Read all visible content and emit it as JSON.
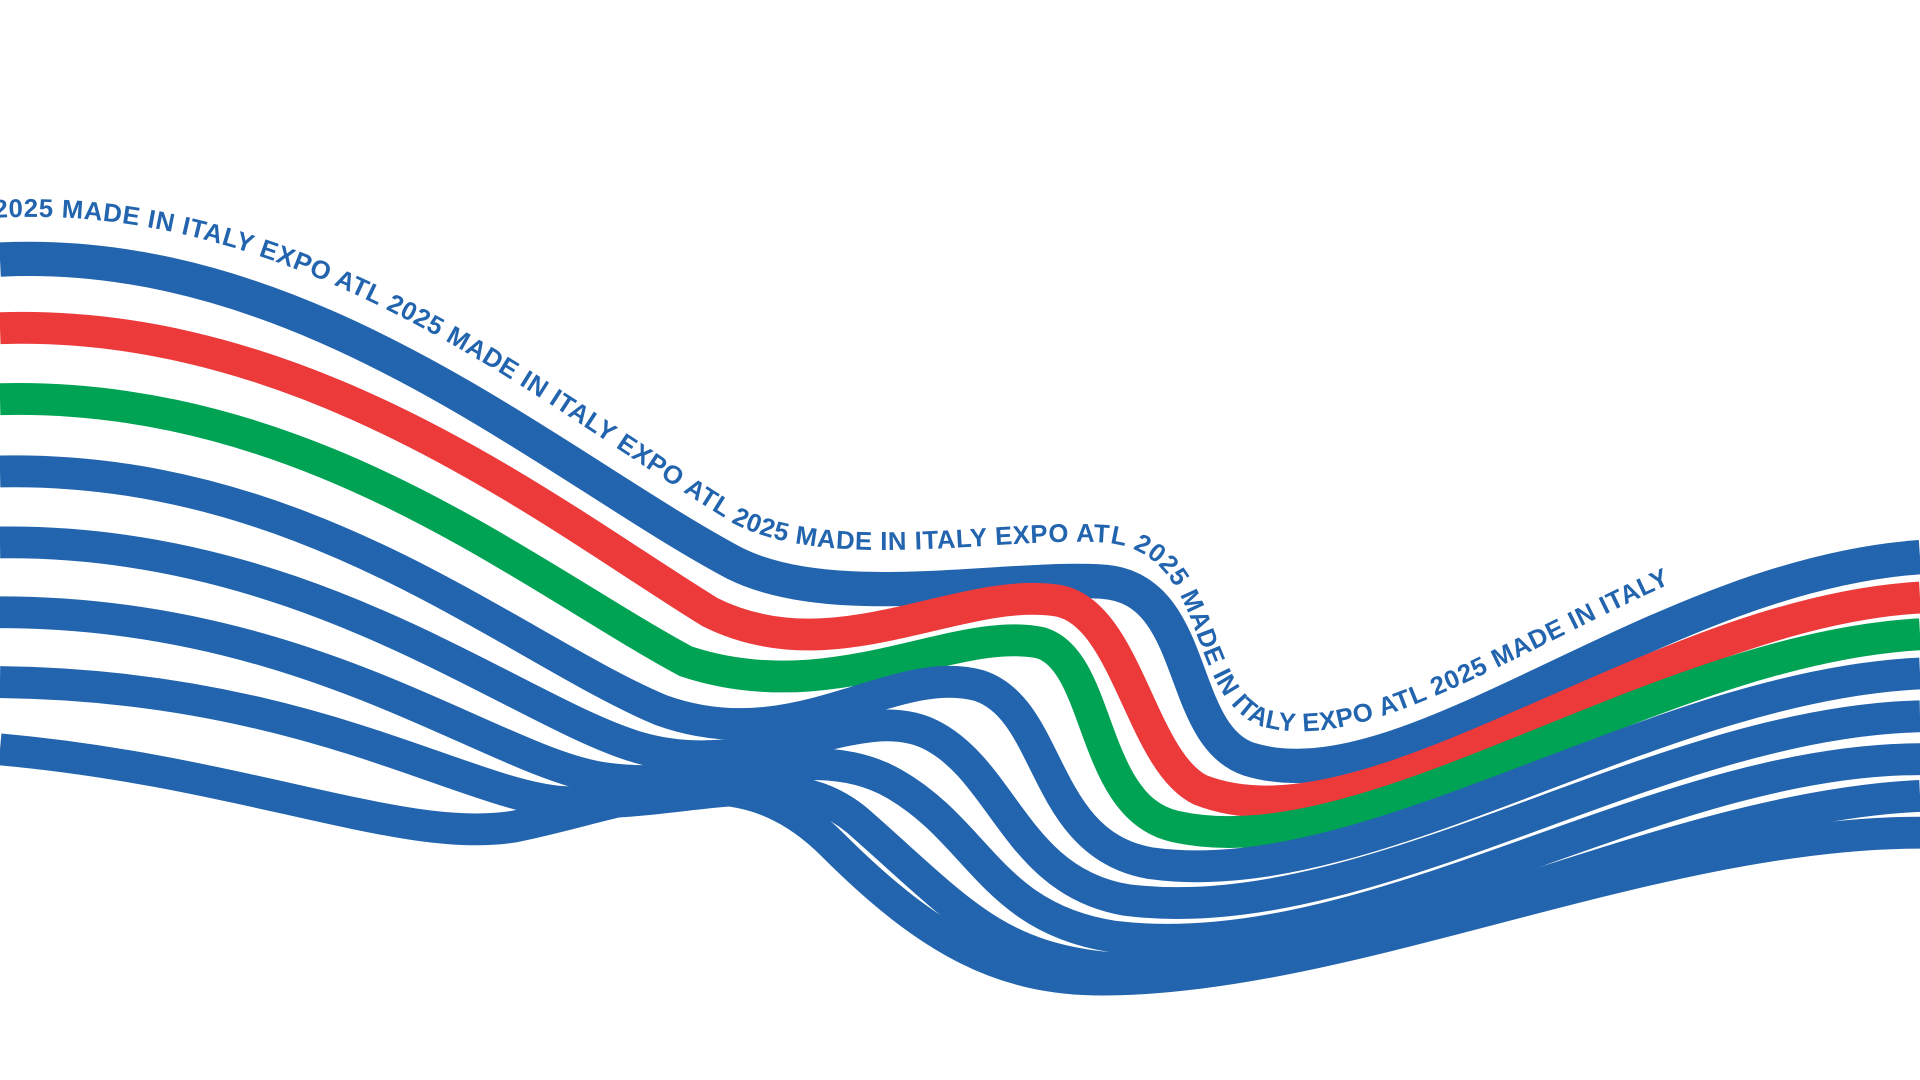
{
  "banner": {
    "text": "2025 MADE IN ITALY EXPO ATL 2025 MADE IN ITALY EXPO ATL 2025 MADE IN ITALY EXPO ATL 2025 MADE IN ITALY EXPO ATL 2025 MADE IN ITALY"
  }
}
